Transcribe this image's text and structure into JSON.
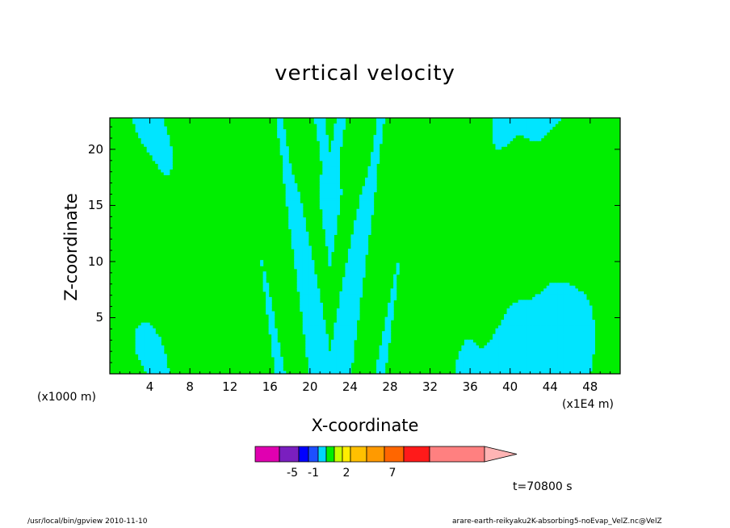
{
  "chart_data": {
    "type": "contour",
    "title": "vertical velocity",
    "xlabel": "X-coordinate",
    "ylabel": "Z-coordinate",
    "x_unit_label": "(x1E4 m)",
    "y_unit_label": "(x1000 m)",
    "xlim": [
      0,
      51
    ],
    "ylim": [
      0,
      22.8
    ],
    "x_ticks": [
      4,
      8,
      12,
      16,
      20,
      24,
      28,
      32,
      36,
      40,
      44,
      48
    ],
    "y_ticks": [
      5,
      10,
      15,
      20
    ],
    "contour_fill_colors": {
      "negative": "#00e5ff",
      "near_zero": "#00ee00"
    },
    "colorbar": {
      "levels_colors": [
        "#e000b0",
        "#7a1fbf",
        "#0000ff",
        "#1d4fff",
        "#00d5ff",
        "#00ee00",
        "#c8ff00",
        "#ffee00",
        "#ffc000",
        "#ff9a00",
        "#ff6600",
        "#ff1a1a",
        "#ff8080",
        "#ffb4b4"
      ],
      "tick_labels": [
        "-5",
        "-1",
        "2",
        "7"
      ]
    },
    "annotation_time": "t=70800 s"
  },
  "footer": {
    "left": "/usr/local/bin/gpview  2010-11-10",
    "right": "arare-earth-reikyaku2K-absorbing5-noEvap_VelZ.nc@VelZ"
  }
}
